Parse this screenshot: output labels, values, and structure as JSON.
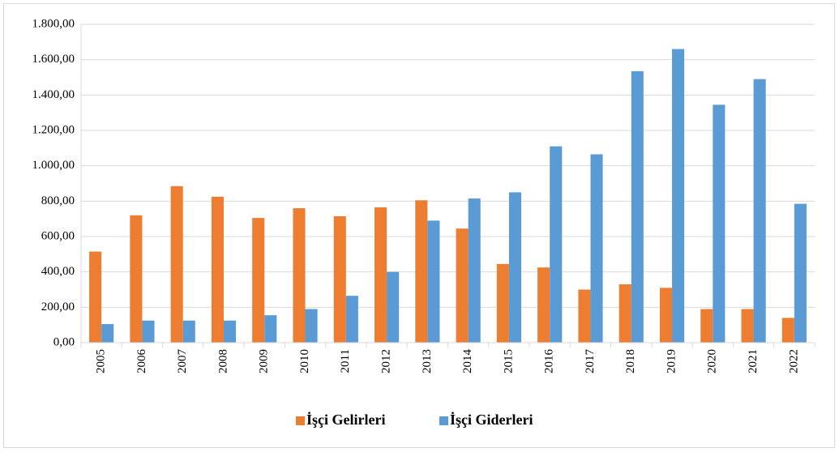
{
  "chart_data": {
    "type": "bar",
    "categories": [
      "2005",
      "2006",
      "2007",
      "2008",
      "2009",
      "2010",
      "2011",
      "2012",
      "2013",
      "2014",
      "2015",
      "2016",
      "2017",
      "2018",
      "2019",
      "2020",
      "2021",
      "2022"
    ],
    "series": [
      {
        "name": "İşçi Gelirleri",
        "color": "#ED7D31",
        "values": [
          515,
          720,
          885,
          825,
          705,
          760,
          715,
          765,
          805,
          645,
          445,
          425,
          300,
          330,
          310,
          190,
          190,
          140
        ]
      },
      {
        "name": "İşçi Giderleri",
        "color": "#5B9BD5",
        "values": [
          105,
          125,
          125,
          125,
          155,
          190,
          265,
          400,
          690,
          815,
          850,
          1110,
          1065,
          1535,
          1660,
          1345,
          1490,
          785
        ]
      }
    ],
    "ylim": [
      0,
      1800
    ],
    "yticks": [
      {
        "value": 0,
        "label": "0,00"
      },
      {
        "value": 200,
        "label": "200,00"
      },
      {
        "value": 400,
        "label": "400,00"
      },
      {
        "value": 600,
        "label": "600,00"
      },
      {
        "value": 800,
        "label": "800,00"
      },
      {
        "value": 1000,
        "label": "1.000,00"
      },
      {
        "value": 1200,
        "label": "1.200,00"
      },
      {
        "value": 1400,
        "label": "1.400,00"
      },
      {
        "value": 1600,
        "label": "1.600,00"
      },
      {
        "value": 1800,
        "label": "1.800,00"
      }
    ],
    "grid": true,
    "legend": "bottom"
  }
}
